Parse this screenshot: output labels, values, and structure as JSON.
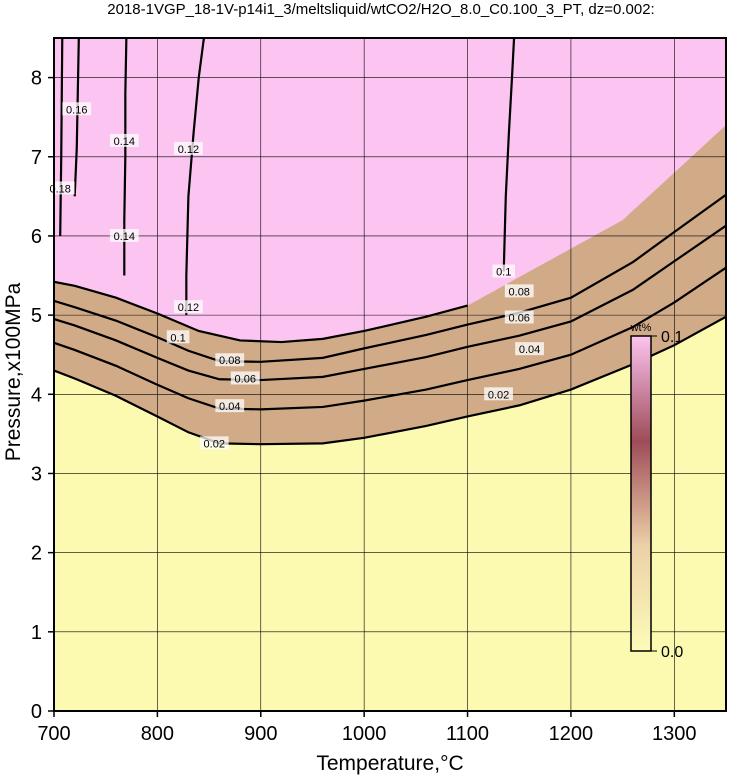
{
  "chart_data": {
    "type": "contour",
    "title": "2018-1VGP_18-1V-p14i1_3/meltsliquid/wtCO2/H2O_8.0_C0.100_3_PT, dz=0.002:",
    "xlabel": "Temperature,°C",
    "ylabel": "Pressure,x100MPa",
    "xlim": [
      700,
      1350
    ],
    "ylim": [
      0,
      8.5
    ],
    "x_ticks": [
      700,
      800,
      900,
      1000,
      1100,
      1200,
      1300
    ],
    "y_ticks": [
      0,
      1,
      2,
      3,
      4,
      5,
      6,
      7,
      8
    ],
    "grid": true,
    "contour_interval": 0.002,
    "colorbar": {
      "label": "wt%",
      "min": 0.0,
      "max": 0.1,
      "min_label": "0.0",
      "max_label": "0.1",
      "colors": [
        "#fcfcb8",
        "#edd0a8",
        "#9e4c58",
        "#fcc4f0"
      ]
    },
    "labeled_contours": [
      {
        "level": 0.02,
        "label": "0.02",
        "x": [
          700,
          720,
          760,
          800,
          830,
          860,
          900,
          960,
          1000,
          1060,
          1100,
          1150,
          1200,
          1260,
          1300,
          1350
        ],
        "y": [
          4.3,
          4.2,
          3.98,
          3.72,
          3.52,
          3.38,
          3.37,
          3.38,
          3.45,
          3.6,
          3.72,
          3.86,
          4.06,
          4.38,
          4.62,
          4.98
        ],
        "label_positions": [
          [
            855,
            3.38
          ],
          [
            1130,
            4.0
          ]
        ]
      },
      {
        "level": 0.04,
        "label": "0.04",
        "x": [
          700,
          720,
          760,
          800,
          830,
          860,
          900,
          960,
          1000,
          1060,
          1100,
          1150,
          1200,
          1260,
          1300,
          1350
        ],
        "y": [
          4.65,
          4.56,
          4.36,
          4.12,
          3.95,
          3.82,
          3.81,
          3.84,
          3.92,
          4.06,
          4.18,
          4.32,
          4.5,
          4.85,
          5.16,
          5.6
        ],
        "label_positions": [
          [
            870,
            3.85
          ],
          [
            1160,
            4.57
          ]
        ]
      },
      {
        "level": 0.06,
        "label": "0.06",
        "x": [
          700,
          720,
          760,
          800,
          830,
          860,
          900,
          960,
          1000,
          1060,
          1100,
          1150,
          1200,
          1260,
          1300,
          1350
        ],
        "y": [
          4.95,
          4.87,
          4.68,
          4.46,
          4.3,
          4.19,
          4.18,
          4.22,
          4.32,
          4.47,
          4.6,
          4.74,
          4.92,
          5.32,
          5.68,
          6.13
        ],
        "label_positions": [
          [
            885,
            4.2
          ],
          [
            1150,
            4.97
          ]
        ]
      },
      {
        "level": 0.08,
        "label": "0.08",
        "x": [
          700,
          720,
          760,
          800,
          830,
          860,
          900,
          960,
          1000,
          1060,
          1100,
          1150,
          1200,
          1260,
          1300,
          1350
        ],
        "y": [
          5.18,
          5.1,
          4.93,
          4.72,
          4.55,
          4.42,
          4.41,
          4.46,
          4.58,
          4.75,
          4.88,
          5.03,
          5.22,
          5.67,
          6.05,
          6.52
        ],
        "label_positions": [
          [
            870,
            4.43
          ],
          [
            1150,
            5.3
          ]
        ]
      },
      {
        "level": 0.1,
        "label": "0.1",
        "x": [
          700,
          720,
          760,
          800,
          840,
          880,
          920,
          960,
          1000,
          1060,
          1100
        ],
        "y": [
          5.42,
          5.37,
          5.22,
          5.02,
          4.8,
          4.68,
          4.66,
          4.7,
          4.8,
          4.98,
          5.12
        ],
        "label_positions": [
          [
            820,
            4.72
          ],
          [
            1135,
            5.55
          ]
        ]
      },
      {
        "level": 0.1,
        "label": "0.1",
        "x": [
          1135,
          1137,
          1140,
          1143,
          1145
        ],
        "y": [
          5.55,
          6.5,
          7.3,
          8.0,
          8.5
        ],
        "label_positions": []
      },
      {
        "level": 0.12,
        "label": "0.12",
        "x": [
          828,
          828,
          830,
          835,
          840,
          845
        ],
        "y": [
          5.0,
          5.5,
          6.5,
          7.3,
          8.0,
          8.5
        ],
        "label_positions": [
          [
            830,
            5.1
          ],
          [
            830,
            7.1
          ]
        ]
      },
      {
        "level": 0.14,
        "label": "0.14",
        "x": [
          768,
          768,
          769,
          769,
          770
        ],
        "y": [
          5.5,
          6.2,
          7.0,
          7.8,
          8.5
        ],
        "label_positions": [
          [
            768,
            6.0
          ],
          [
            768,
            7.2
          ]
        ]
      },
      {
        "level": 0.16,
        "label": "0.16",
        "x": [
          720,
          722,
          723,
          724
        ],
        "y": [
          6.5,
          7.1,
          7.8,
          8.5
        ],
        "label_positions": [
          [
            722,
            7.6
          ]
        ]
      },
      {
        "level": 0.18,
        "label": "0.18",
        "x": [
          706,
          707,
          708
        ],
        "y": [
          6.0,
          7.0,
          8.5
        ],
        "label_positions": [
          [
            706,
            6.6
          ]
        ]
      }
    ]
  }
}
